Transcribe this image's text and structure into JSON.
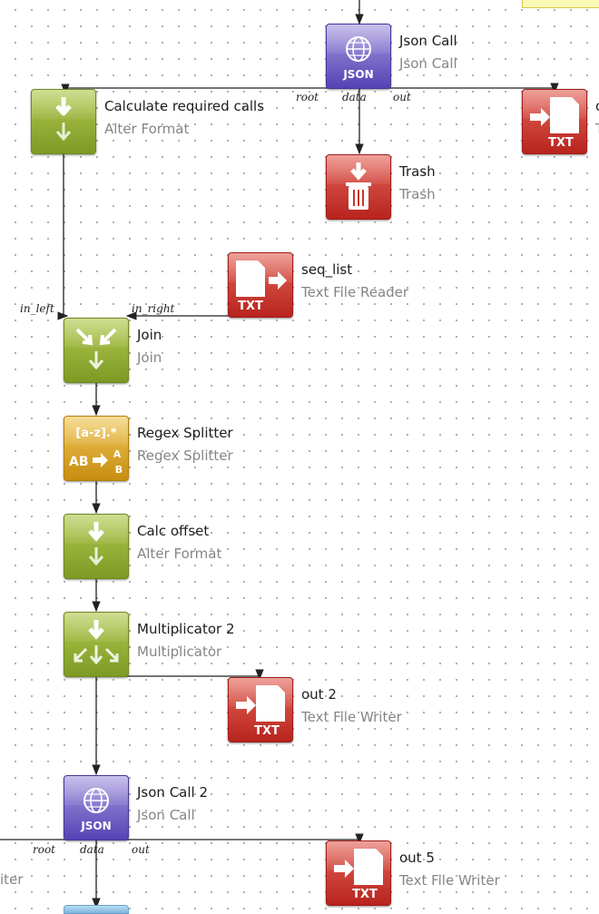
{
  "nodes": {
    "json_call": {
      "name": "Json Call",
      "type": "Json Call",
      "icon": "globe-json-icon"
    },
    "calc_required": {
      "name": "Calculate required calls",
      "type": "Alter Format",
      "icon": "alter-format-icon"
    },
    "writer_top": {
      "name": "o",
      "type": "T",
      "icon": "text-file-writer-icon"
    },
    "trash": {
      "name": "Trash",
      "type": "Trash",
      "icon": "trash-icon"
    },
    "seq_list": {
      "name": "seq_list",
      "type": "Text File Reader",
      "icon": "text-file-reader-icon"
    },
    "join": {
      "name": "Join",
      "type": "Join",
      "icon": "join-icon"
    },
    "regex_splitter": {
      "name": "Regex Splitter",
      "type": "Regex Splitter",
      "icon": "regex-icon",
      "icon_text": "[a-z].*",
      "icon_sub": "AB",
      "icon_sub2": "A",
      "icon_sub3": "B"
    },
    "calc_offset": {
      "name": "Calc offset",
      "type": "Alter Format",
      "icon": "alter-format-icon"
    },
    "multiplicator": {
      "name": "Multiplicator 2",
      "type": "Multiplicator",
      "icon": "multiplicator-icon"
    },
    "out2": {
      "name": "out 2",
      "type": "Text File Writer",
      "icon": "text-file-writer-icon"
    },
    "json_call2": {
      "name": "Json Call 2",
      "type": "Json Call",
      "icon": "globe-json-icon"
    },
    "out5": {
      "name": "out 5",
      "type": "Text File Writer",
      "icon": "text-file-writer-icon"
    },
    "writer_left": {
      "type": "iter"
    }
  },
  "icon_labels": {
    "json": "JSON",
    "txt": "TXT"
  },
  "ports": {
    "root": "root",
    "data": "data",
    "out": "out",
    "in_left": "in_left",
    "in_right": "in_right"
  },
  "colors": {
    "green": "#8fae2e",
    "red": "#c8342b",
    "purple": "#6a5bc6",
    "yellow": "#dca52a",
    "wire": "#222222",
    "note": "#fbf8b5"
  }
}
